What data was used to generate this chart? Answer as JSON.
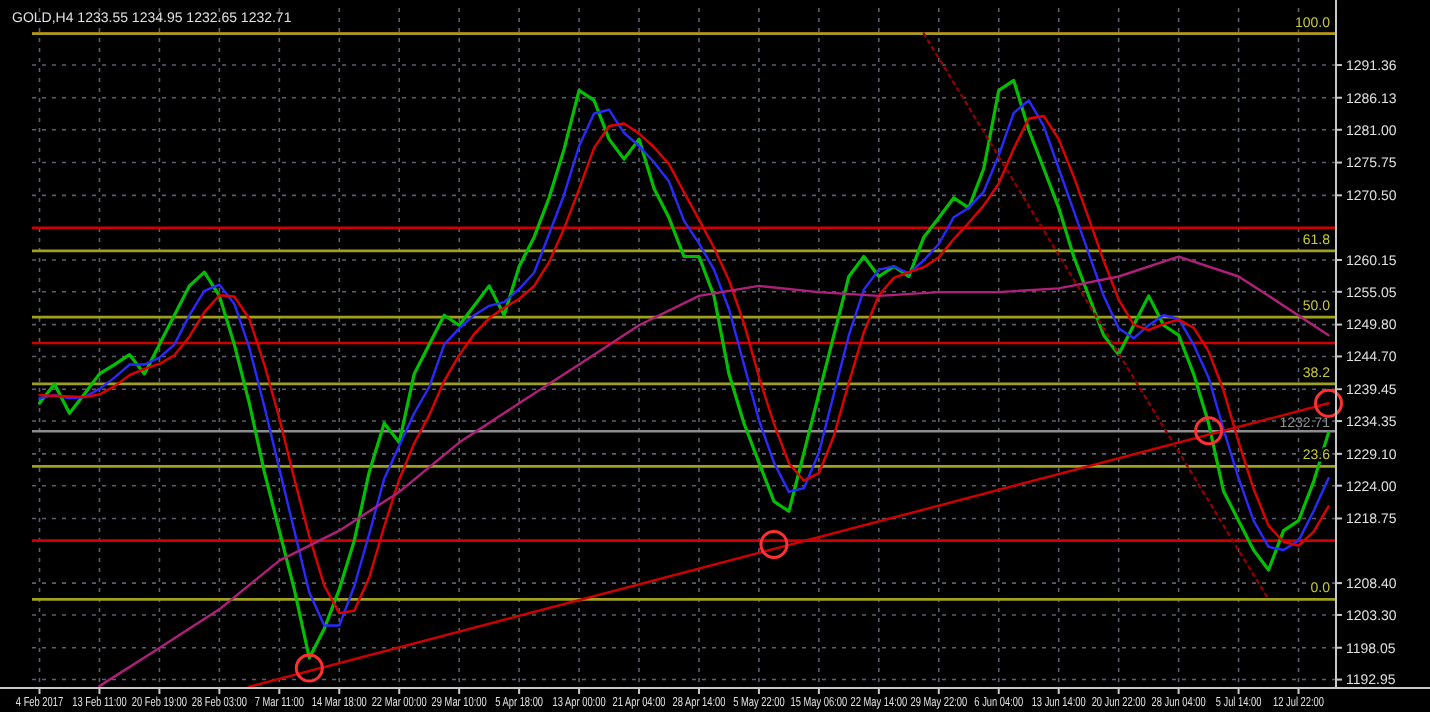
{
  "chart_data": {
    "type": "line",
    "title": "GOLD,H4 1233.55 1234.95 1232.65 1232.71",
    "grid": true,
    "categories": [
      "4 Feb 2017",
      null,
      null,
      null,
      "13 Feb 11:00",
      null,
      null,
      null,
      "20 Feb 19:00",
      null,
      null,
      null,
      "28 Feb 03:00",
      null,
      null,
      null,
      "7 Mar 11:00",
      null,
      null,
      null,
      "14 Mar 18:00",
      null,
      null,
      null,
      "22 Mar 00:00",
      null,
      null,
      null,
      "29 Mar 10:00",
      null,
      null,
      null,
      "5 Apr 18:00",
      null,
      null,
      null,
      "13 Apr 00:00",
      null,
      null,
      null,
      "21 Apr 04:00",
      null,
      null,
      null,
      "28 Apr 14:00",
      null,
      null,
      null,
      "5 May 22:00",
      null,
      null,
      null,
      "15 May 06:00",
      null,
      null,
      null,
      "22 May 14:00",
      null,
      null,
      null,
      "29 May 22:00",
      null,
      null,
      null,
      "6 Jun 04:00",
      null,
      null,
      null,
      "13 Jun 14:00",
      null,
      null,
      null,
      "20 Jun 22:00",
      null,
      null,
      null,
      "28 Jun 04:00",
      null,
      null,
      null,
      "5 Jul 14:00",
      null,
      null,
      null,
      "12 Jul 22:00",
      null,
      null
    ],
    "ylim": [
      1191.6,
      1300.5
    ],
    "yticks": [
      {
        "value": 1192.95,
        "label": "1192.95"
      },
      {
        "value": 1198.05,
        "label": "1198.05"
      },
      {
        "value": 1203.3,
        "label": "1203.30"
      },
      {
        "value": 1208.4,
        "label": "1208.40"
      },
      {
        "value": 1218.75,
        "label": "1218.75"
      },
      {
        "value": 1224,
        "label": "1224.00"
      },
      {
        "value": 1229.1,
        "label": "1229.10"
      },
      {
        "value": 1234.35,
        "label": "1234.35"
      },
      {
        "value": 1239.45,
        "label": "1239.45"
      },
      {
        "value": 1244.7,
        "label": "1244.70"
      },
      {
        "value": 1249.8,
        "label": "1249.80"
      },
      {
        "value": 1255.05,
        "label": "1255.05"
      },
      {
        "value": 1260.15,
        "label": "1260.15"
      },
      {
        "value": 1270.5,
        "label": "1270.50"
      },
      {
        "value": 1275.75,
        "label": "1275.75"
      },
      {
        "value": 1281,
        "label": "1281.00"
      },
      {
        "value": 1286.13,
        "label": "1286.13"
      },
      {
        "value": 1291.36,
        "label": "1291.36"
      }
    ],
    "series": [
      {
        "color": "#00c000",
        "values": [
          1237.2,
          1240.3,
          1235.6,
          1238.7,
          1241.9,
          1243.4,
          1245.0,
          1241.9,
          1246.6,
          1251.3,
          1256.0,
          1258.2,
          1254.4,
          1246.6,
          1237.2,
          1226.2,
          1216.8,
          1207.4,
          1196.4,
          1201.1,
          1207.4,
          1215.2,
          1226.2,
          1234.0,
          1230.9,
          1241.9,
          1246.6,
          1251.3,
          1249.7,
          1252.8,
          1256.0,
          1251.3,
          1259.1,
          1263.8,
          1270.1,
          1277.9,
          1287.3,
          1285.7,
          1279.5,
          1276.3,
          1279.5,
          1271.6,
          1266.9,
          1260.7,
          1260.7,
          1254.4,
          1241.9,
          1234.0,
          1227.7,
          1221.5,
          1219.9,
          1229.3,
          1238.7,
          1248.1,
          1257.5,
          1260.7,
          1257.5,
          1259.1,
          1257.5,
          1263.8,
          1266.9,
          1270.1,
          1268.5,
          1274.8,
          1287.3,
          1288.9,
          1281.0,
          1274.8,
          1268.5,
          1260.7,
          1254.4,
          1248.1,
          1245.0,
          1249.7,
          1254.4,
          1249.7,
          1248.1,
          1241.9,
          1234.0,
          1223.1,
          1218.4,
          1213.7,
          1210.5,
          1216.8,
          1218.4,
          1224.6,
          1232.5
        ]
      },
      {
        "color": "#2a2aff",
        "values": [
          1238.0,
          1238.5,
          1238.0,
          1238.2,
          1239.5,
          1241.3,
          1243.4,
          1243.4,
          1244.5,
          1246.6,
          1251.3,
          1255.2,
          1256.2,
          1253.1,
          1246.1,
          1236.7,
          1226.7,
          1216.8,
          1206.9,
          1201.6,
          1201.6,
          1207.9,
          1216.3,
          1225.1,
          1230.4,
          1235.6,
          1239.8,
          1246.6,
          1249.2,
          1251.3,
          1252.8,
          1253.4,
          1255.5,
          1258.1,
          1264.3,
          1270.6,
          1278.4,
          1283.6,
          1284.2,
          1280.5,
          1278.4,
          1275.8,
          1272.7,
          1266.4,
          1262.8,
          1258.6,
          1252.3,
          1243.4,
          1234.5,
          1227.7,
          1223.0,
          1223.6,
          1229.3,
          1238.7,
          1248.1,
          1255.4,
          1258.6,
          1259.1,
          1258.0,
          1260.1,
          1262.7,
          1267.0,
          1268.5,
          1271.1,
          1276.9,
          1283.7,
          1285.7,
          1281.6,
          1274.8,
          1268.0,
          1261.2,
          1254.4,
          1249.2,
          1247.6,
          1249.7,
          1251.3,
          1250.7,
          1246.6,
          1241.3,
          1233.0,
          1225.2,
          1218.4,
          1214.2,
          1213.7,
          1215.2,
          1219.9,
          1225.2
        ]
      },
      {
        "color": "#e00000",
        "values": [
          1238.5,
          1238.4,
          1238.3,
          1238.2,
          1238.6,
          1239.9,
          1241.7,
          1242.7,
          1243.5,
          1244.9,
          1247.9,
          1251.8,
          1254.5,
          1254.3,
          1250.7,
          1243.4,
          1234.8,
          1225.1,
          1215.9,
          1208.0,
          1203.6,
          1204.0,
          1209.3,
          1217.5,
          1225.0,
          1230.8,
          1235.3,
          1240.8,
          1244.9,
          1248.3,
          1250.8,
          1252.5,
          1253.9,
          1256.0,
          1259.8,
          1265.2,
          1271.5,
          1278.1,
          1281.6,
          1282.0,
          1280.4,
          1278.2,
          1275.5,
          1271.0,
          1266.6,
          1262.1,
          1256.9,
          1250.0,
          1241.4,
          1233.9,
          1227.6,
          1224.8,
          1226.0,
          1232.0,
          1240.5,
          1248.6,
          1254.5,
          1257.3,
          1258.2,
          1259.0,
          1260.6,
          1263.5,
          1266.1,
          1268.9,
          1272.4,
          1278.0,
          1282.8,
          1283.2,
          1279.5,
          1273.5,
          1266.8,
          1260.0,
          1253.8,
          1249.8,
          1248.9,
          1249.9,
          1250.6,
          1249.3,
          1245.5,
          1239.2,
          1231.0,
          1223.5,
          1217.6,
          1215.0,
          1214.4,
          1216.6,
          1220.7
        ]
      },
      {
        "color": "#b0207a",
        "values": [
          null,
          null,
          null,
          null,
          1191.9,
          null,
          null,
          null,
          1198.0,
          null,
          null,
          null,
          1204.2,
          null,
          null,
          null,
          1212.0,
          null,
          null,
          null,
          1216.8,
          null,
          null,
          null,
          1223.0,
          null,
          null,
          null,
          1230.9,
          null,
          null,
          null,
          1237.2,
          null,
          null,
          null,
          1243.4,
          null,
          null,
          null,
          1249.7,
          null,
          null,
          null,
          1254.4,
          null,
          null,
          null,
          1256.0,
          null,
          null,
          null,
          1255.0,
          null,
          null,
          null,
          1254.4,
          null,
          null,
          null,
          1255.0,
          null,
          null,
          null,
          1255.0,
          null,
          null,
          null,
          1255.6,
          null,
          null,
          null,
          1257.5,
          null,
          null,
          null,
          1260.7,
          null,
          null,
          null,
          1257.5,
          null,
          1254.4,
          null,
          null,
          null,
          1248.1
        ]
      },
      {
        "color": "#d00000",
        "values": [
          null,
          null,
          null,
          null,
          null,
          null,
          null,
          null,
          null,
          null,
          null,
          null,
          null,
          null,
          1191.8,
          null,
          null,
          null,
          null,
          null,
          null,
          null,
          null,
          null,
          null,
          null,
          null,
          null,
          null,
          null,
          null,
          null,
          null,
          null,
          null,
          null,
          null,
          null,
          null,
          null,
          null,
          null,
          null,
          null,
          null,
          null,
          null,
          null,
          null,
          null,
          null,
          null,
          null,
          null,
          null,
          null,
          null,
          null,
          null,
          null,
          null,
          null,
          null,
          null,
          null,
          null,
          null,
          null,
          null,
          null,
          null,
          null,
          null,
          null,
          null,
          null,
          null,
          null,
          null,
          null,
          null,
          null,
          null,
          null,
          null,
          null,
          1237.2
        ]
      },
      {
        "color": "#900000",
        "line_style": "dotted",
        "values": [
          null,
          null,
          null,
          null,
          null,
          null,
          null,
          null,
          null,
          null,
          null,
          null,
          null,
          null,
          null,
          null,
          null,
          null,
          null,
          null,
          null,
          null,
          null,
          null,
          null,
          null,
          null,
          null,
          null,
          null,
          null,
          null,
          null,
          null,
          null,
          null,
          null,
          null,
          null,
          null,
          null,
          null,
          null,
          null,
          null,
          null,
          null,
          null,
          null,
          null,
          null,
          null,
          null,
          null,
          null,
          null,
          null,
          null,
          null,
          1296.4,
          null,
          null,
          null,
          null,
          null,
          null,
          null,
          null,
          null,
          null,
          null,
          null,
          null,
          null,
          null,
          null,
          null,
          null,
          null,
          null,
          null,
          null,
          1205.8,
          null,
          null,
          null,
          null
        ]
      },
      {
        "type": "scatter",
        "marker": "circle",
        "color": "#ff3030",
        "values": [
          null,
          null,
          null,
          null,
          null,
          null,
          null,
          null,
          null,
          null,
          null,
          null,
          null,
          null,
          null,
          null,
          null,
          null,
          1194.8,
          null,
          null,
          null,
          null,
          null,
          null,
          null,
          null,
          null,
          null,
          null,
          null,
          null,
          null,
          null,
          null,
          null,
          null,
          null,
          null,
          null,
          null,
          null,
          null,
          null,
          null,
          null,
          null,
          null,
          null,
          1214.6,
          null,
          null,
          null,
          null,
          null,
          null,
          null,
          null,
          null,
          null,
          null,
          null,
          null,
          null,
          null,
          null,
          null,
          null,
          null,
          null,
          null,
          null,
          null,
          null,
          null,
          null,
          null,
          null,
          1232.8,
          null,
          null,
          null,
          null,
          null,
          null,
          null,
          1237.2
        ]
      }
    ],
    "ref_lines": [
      {
        "axis": "y",
        "value": 1296.4,
        "color": "#d00000"
      },
      {
        "axis": "y",
        "value": 1265.3,
        "color": "#d00000"
      },
      {
        "axis": "y",
        "value": 1246.85,
        "color": "#d00000"
      },
      {
        "axis": "y",
        "value": 1215.2,
        "color": "#d00000"
      },
      {
        "axis": "y",
        "value": 1232.71,
        "label": "1232.71",
        "color": "#8c8c8c"
      },
      {
        "axis": "y",
        "value": 1296.4,
        "color": "#a0a020"
      },
      {
        "axis": "y",
        "value": 1261.6,
        "color": "#a0a020"
      },
      {
        "axis": "y",
        "value": 1251.0,
        "color": "#a0a020"
      },
      {
        "axis": "y",
        "value": 1240.3,
        "color": "#a0a020"
      },
      {
        "axis": "y",
        "value": 1227.1,
        "color": "#a0a020"
      },
      {
        "axis": "y",
        "value": 1205.8,
        "color": "#a0a020"
      }
    ],
    "annotations": [
      {
        "text": "100.0",
        "y": 1296.4
      },
      {
        "text": "61.8",
        "y": 1261.6
      },
      {
        "text": "50.0",
        "y": 1251.0
      },
      {
        "text": "38.2",
        "y": 1240.3
      },
      {
        "text": "23.6",
        "y": 1227.1
      },
      {
        "text": "0.0",
        "y": 1205.8
      }
    ]
  }
}
